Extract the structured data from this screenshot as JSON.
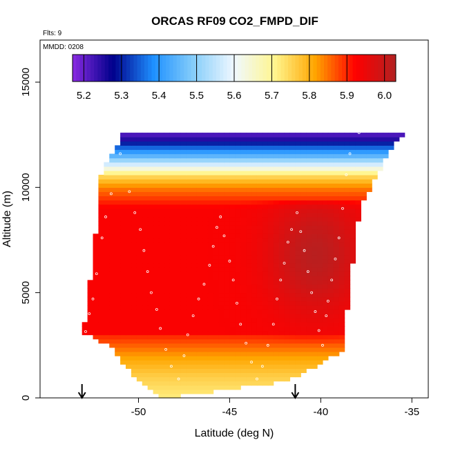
{
  "chart_data": {
    "type": "heatmap",
    "title": "ORCAS RF09 CO2_FMPD_DIF",
    "flights_label": "Flts: 9",
    "date_label": "MMDD: 0208",
    "xlabel": "Latitude (deg N)",
    "ylabel": "Altitude (m)",
    "xlim": [
      -55.4,
      -34.1
    ],
    "ylim": [
      0,
      17000
    ],
    "x_ticks": [
      -50,
      -45,
      -40,
      -35
    ],
    "x_tick_labels": [
      "-50",
      "-45",
      "-40",
      "-35"
    ],
    "y_ticks": [
      0,
      5000,
      10000,
      15000
    ],
    "y_tick_labels": [
      "0",
      "5000",
      "10000",
      "15000"
    ],
    "colorbar": {
      "min": 5.17,
      "max": 6.03,
      "ticks": [
        5.2,
        5.3,
        5.4,
        5.5,
        5.6,
        5.7,
        5.8,
        5.9,
        6.0
      ],
      "tick_labels": [
        "5.2",
        "5.3",
        "5.4",
        "5.5",
        "5.6",
        "5.7",
        "5.8",
        "5.9",
        "6.0"
      ],
      "colors": [
        "#8a2be2",
        "#00008b",
        "#1e90ff",
        "#87cefa",
        "#f0f8ff",
        "#fff68f",
        "#ffa500",
        "#ff0000",
        "#b22222"
      ]
    },
    "domain_left_edge": [
      [
        3100,
        -53.1
      ],
      [
        3300,
        -53.0
      ],
      [
        6000,
        -52.6
      ],
      [
        9000,
        -52.2
      ],
      [
        10600,
        -52.1
      ],
      [
        12200,
        -51.0
      ],
      [
        12600,
        -51.0
      ]
    ],
    "domain_right_edge": [
      [
        0,
        -48.6
      ],
      [
        800,
        -42.0
      ],
      [
        2200,
        -39.0
      ],
      [
        5000,
        -38.6
      ],
      [
        9000,
        -38.0
      ],
      [
        12000,
        -36.2
      ],
      [
        12700,
        -35.1
      ]
    ],
    "domain_bottom_edge": [
      [
        3100,
        -53.1
      ],
      [
        2400,
        -51.5
      ],
      [
        1000,
        -50.2
      ],
      [
        0,
        -48.6
      ]
    ],
    "value_field": {
      "core_value": 5.93,
      "dark_center_lat": -40.3,
      "dark_center_alt": 6800,
      "dark_center_value": 6.02,
      "low_alt_transition": [
        [
          0,
          5.72
        ],
        [
          1000,
          5.76
        ],
        [
          2000,
          5.82
        ],
        [
          3000,
          5.9
        ]
      ],
      "top_transition": [
        [
          9000,
          5.93
        ],
        [
          10000,
          5.84
        ],
        [
          10600,
          5.74
        ],
        [
          11000,
          5.6
        ],
        [
          11500,
          5.45
        ],
        [
          12000,
          5.33
        ],
        [
          12400,
          5.22
        ]
      ]
    },
    "observation_points": [
      [
        -52.9,
        3150
      ],
      [
        -52.7,
        4000
      ],
      [
        -52.5,
        4700
      ],
      [
        -52.3,
        5900
      ],
      [
        -52.0,
        7600
      ],
      [
        -51.8,
        8600
      ],
      [
        -51.5,
        9700
      ],
      [
        -51.0,
        11600
      ],
      [
        -50.5,
        9800
      ],
      [
        -50.2,
        8800
      ],
      [
        -49.9,
        8000
      ],
      [
        -49.7,
        7000
      ],
      [
        -49.5,
        6000
      ],
      [
        -49.3,
        5000
      ],
      [
        -49.0,
        4200
      ],
      [
        -48.8,
        3300
      ],
      [
        -48.5,
        2300
      ],
      [
        -48.2,
        1500
      ],
      [
        -47.8,
        900
      ],
      [
        -47.5,
        2000
      ],
      [
        -47.3,
        3000
      ],
      [
        -47.0,
        3900
      ],
      [
        -46.7,
        4700
      ],
      [
        -46.4,
        5400
      ],
      [
        -46.1,
        6300
      ],
      [
        -45.9,
        7200
      ],
      [
        -45.7,
        8100
      ],
      [
        -45.5,
        8600
      ],
      [
        -45.3,
        7700
      ],
      [
        -45.0,
        6500
      ],
      [
        -44.8,
        5600
      ],
      [
        -44.6,
        4500
      ],
      [
        -44.4,
        3500
      ],
      [
        -44.1,
        2600
      ],
      [
        -43.8,
        1700
      ],
      [
        -43.5,
        900
      ],
      [
        -43.2,
        1500
      ],
      [
        -42.9,
        2500
      ],
      [
        -42.6,
        3500
      ],
      [
        -42.4,
        4700
      ],
      [
        -42.2,
        5600
      ],
      [
        -42.0,
        6400
      ],
      [
        -41.8,
        7400
      ],
      [
        -41.6,
        8000
      ],
      [
        -41.3,
        8800
      ],
      [
        -41.1,
        7900
      ],
      [
        -40.9,
        7000
      ],
      [
        -40.7,
        6000
      ],
      [
        -40.5,
        5000
      ],
      [
        -40.3,
        4100
      ],
      [
        -40.1,
        3200
      ],
      [
        -39.9,
        2500
      ],
      [
        -39.7,
        3900
      ],
      [
        -39.6,
        4600
      ],
      [
        -39.4,
        5600
      ],
      [
        -39.2,
        6600
      ],
      [
        -39.0,
        7600
      ],
      [
        -38.8,
        9000
      ],
      [
        -38.6,
        10600
      ],
      [
        -38.4,
        11600
      ],
      [
        -37.9,
        12600
      ],
      [
        -37.4,
        12700
      ],
      [
        -36.9,
        12700
      ],
      [
        -36.4,
        12700
      ],
      [
        -35.9,
        12700
      ],
      [
        -35.4,
        12700
      ]
    ],
    "arrows_at_lat": [
      -53.1,
      -41.4
    ]
  }
}
